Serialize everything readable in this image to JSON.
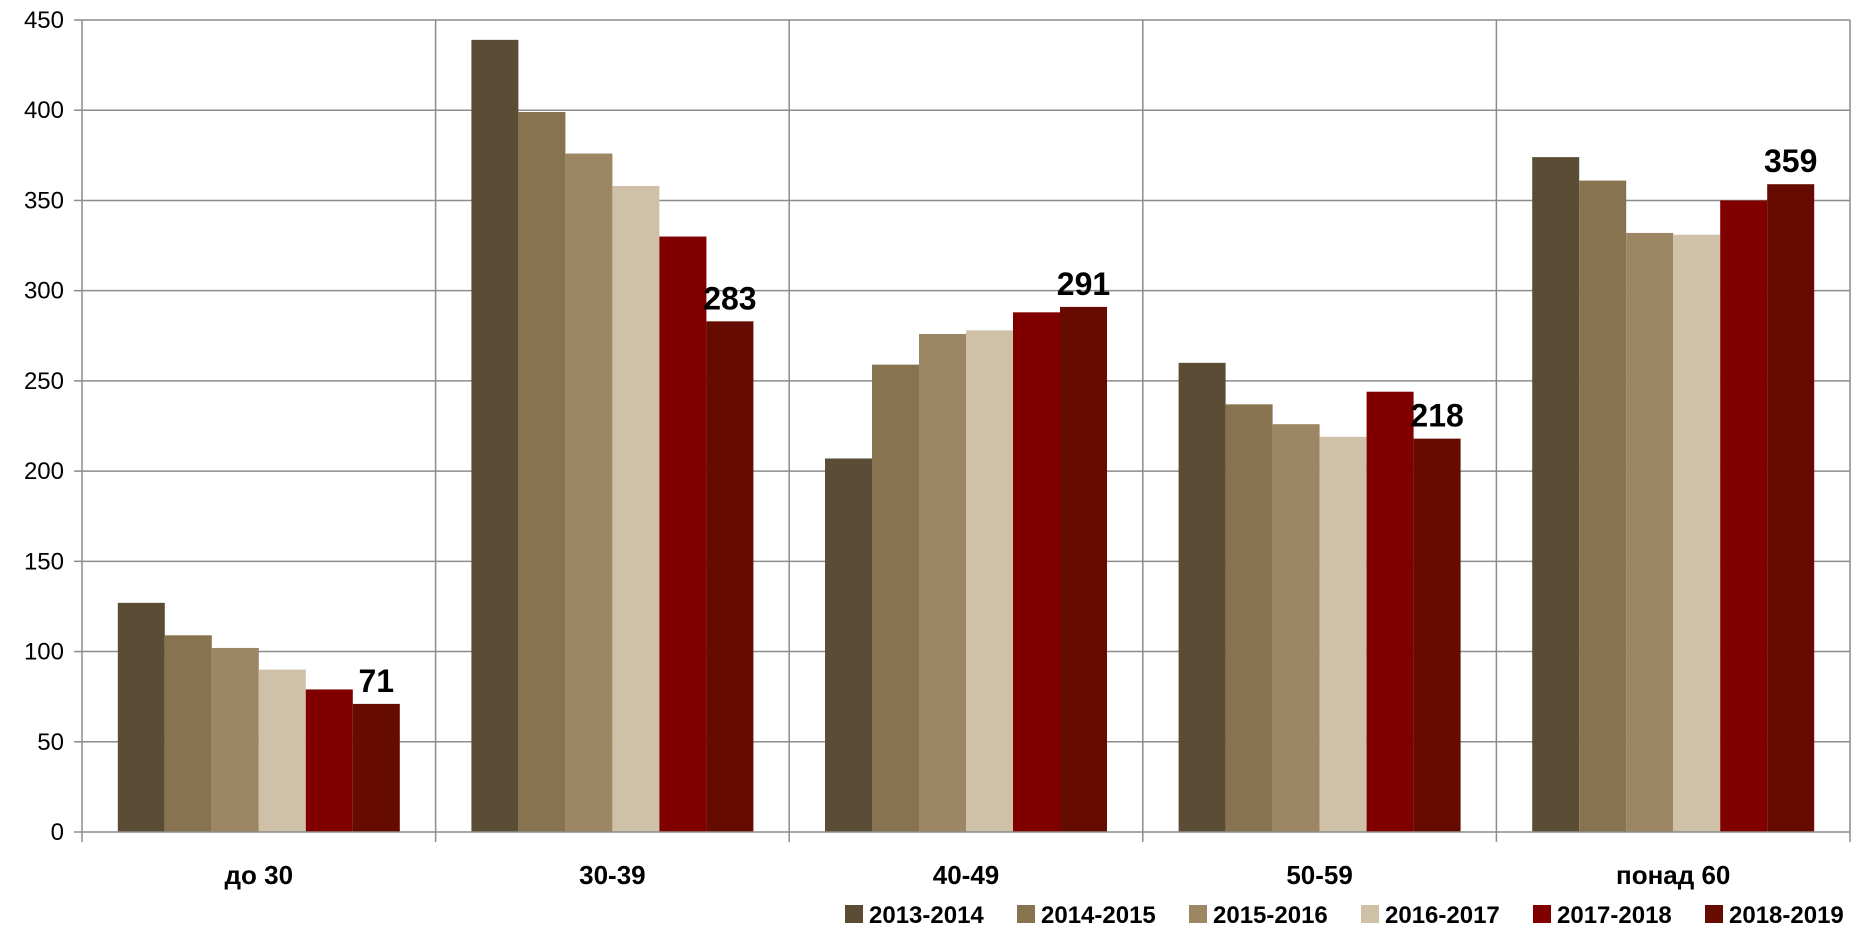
{
  "chart_data": {
    "type": "bar",
    "categories": [
      "до 30",
      "30-39",
      "40-49",
      "50-59",
      "понад 60"
    ],
    "series": [
      {
        "name": "2013-2014",
        "color": "#5b4d35",
        "values": [
          127,
          439,
          207,
          260,
          374
        ]
      },
      {
        "name": "2014-2015",
        "color": "#877350",
        "values": [
          109,
          399,
          259,
          237,
          361
        ]
      },
      {
        "name": "2015-2016",
        "color": "#9c8664",
        "values": [
          102,
          376,
          276,
          226,
          332
        ]
      },
      {
        "name": "2016-2017",
        "color": "#cfc0a8",
        "values": [
          90,
          358,
          278,
          219,
          331
        ]
      },
      {
        "name": "2017-2018",
        "color": "#800000",
        "values": [
          79,
          330,
          288,
          244,
          350
        ]
      },
      {
        "name": "2018-2019",
        "color": "#660b00",
        "values": [
          71,
          283,
          291,
          218,
          359
        ]
      }
    ],
    "data_labels": [
      {
        "series": "2018-2019",
        "category": "до 30",
        "text": "71"
      },
      {
        "series": "2018-2019",
        "category": "30-39",
        "text": "283"
      },
      {
        "series": "2018-2019",
        "category": "40-49",
        "text": "291"
      },
      {
        "series": "2018-2019",
        "category": "50-59",
        "text": "218"
      },
      {
        "series": "2018-2019",
        "category": "понад 60",
        "text": "359"
      }
    ],
    "ylim": [
      0,
      450
    ],
    "yticks": [
      0,
      50,
      100,
      150,
      200,
      250,
      300,
      350,
      400,
      450
    ],
    "grid": true,
    "legend_position": "bottom-right",
    "title": "",
    "xlabel": "",
    "ylabel": ""
  }
}
